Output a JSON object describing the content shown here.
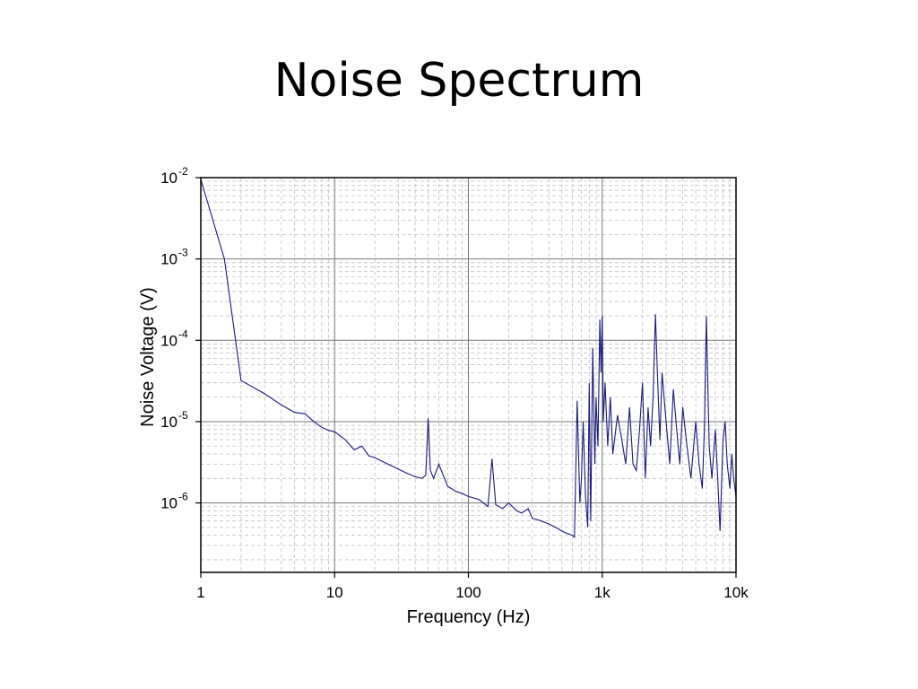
{
  "slide": {
    "title": "Noise Spectrum"
  },
  "chart_data": {
    "type": "line",
    "xlabel": "Frequency (Hz)",
    "ylabel": "Noise Voltage (V)",
    "xscale": "log",
    "yscale": "log",
    "xlim": [
      1,
      10000
    ],
    "ylim": [
      1.4e-07,
      0.01
    ],
    "grid": true,
    "x_ticks": [
      {
        "value": 1,
        "label": "1"
      },
      {
        "value": 10,
        "label": "10"
      },
      {
        "value": 100,
        "label": "100"
      },
      {
        "value": 1000,
        "label": "1k"
      },
      {
        "value": 10000,
        "label": "10k"
      }
    ],
    "y_ticks": [
      {
        "value": 0.01,
        "base": "10",
        "exp": "-2"
      },
      {
        "value": 0.001,
        "base": "10",
        "exp": "-3"
      },
      {
        "value": 0.0001,
        "base": "10",
        "exp": "-4"
      },
      {
        "value": 1e-05,
        "base": "10",
        "exp": "-5"
      },
      {
        "value": 1e-06,
        "base": "10",
        "exp": "-6"
      }
    ],
    "colors": {
      "line": "#1a1a80",
      "grid": "#bfbfbf",
      "major_grid": "#777777"
    },
    "series": [
      {
        "x": [
          1,
          1.5,
          2,
          3,
          4,
          5,
          6,
          7,
          8,
          9,
          10,
          12,
          14,
          16,
          18,
          20,
          25,
          30,
          35,
          40,
          45,
          48,
          50,
          52,
          55,
          60,
          70,
          80,
          90,
          100,
          120,
          140,
          150,
          160,
          180,
          200,
          230,
          250,
          280,
          300,
          350,
          400,
          450,
          500,
          550,
          600,
          620,
          650,
          680,
          700,
          720,
          750,
          780,
          800,
          820,
          850,
          880,
          900,
          930,
          960,
          980,
          1000,
          1020,
          1050,
          1100,
          1150,
          1200,
          1300,
          1400,
          1500,
          1600,
          1700,
          1800,
          1900,
          2000,
          2100,
          2200,
          2300,
          2400,
          2500,
          2600,
          2700,
          2800,
          3000,
          3200,
          3400,
          3600,
          3800,
          4000,
          4300,
          4600,
          5000,
          5300,
          5600,
          5800,
          6000,
          6300,
          6600,
          7000,
          7300,
          7600,
          8000,
          8300,
          8600,
          9000,
          9300,
          9600,
          10000
        ],
        "y": [
          0.0095,
          0.001,
          3.2e-05,
          2.2e-05,
          1.6e-05,
          1.3e-05,
          1.25e-05,
          1e-05,
          8.5e-06,
          7.8e-06,
          7.5e-06,
          6e-06,
          4.5e-06,
          5e-06,
          3.8e-06,
          3.6e-06,
          3e-06,
          2.6e-06,
          2.3e-06,
          2.1e-06,
          2e-06,
          2.2e-06,
          1.1e-05,
          2.5e-06,
          2e-06,
          3e-06,
          1.6e-06,
          1.4e-06,
          1.3e-06,
          1.2e-06,
          1.1e-06,
          9e-07,
          3.5e-06,
          9.5e-07,
          8.5e-07,
          1e-06,
          8e-07,
          7.5e-07,
          8.5e-07,
          6.5e-07,
          6e-07,
          5.5e-07,
          5e-07,
          4.5e-07,
          4.2e-07,
          4e-07,
          3.8e-07,
          1.8e-05,
          1e-06,
          2e-06,
          1e-05,
          1.2e-06,
          5e-07,
          3e-05,
          6e-07,
          8e-05,
          3e-06,
          2e-05,
          5e-06,
          0.00018,
          4e-05,
          0.0002,
          1e-05,
          3e-05,
          5e-06,
          2e-05,
          4e-06,
          1.2e-05,
          6e-06,
          3e-06,
          1.5e-05,
          3e-06,
          2.5e-06,
          8e-06,
          3e-05,
          2e-06,
          1.5e-05,
          5e-06,
          2e-05,
          0.00021,
          3e-05,
          6e-06,
          4e-05,
          1e-05,
          3e-06,
          2.5e-05,
          8e-06,
          3e-06,
          1.5e-05,
          5e-06,
          2e-06,
          1e-05,
          3e-06,
          1.5e-06,
          8e-06,
          0.0002,
          5e-06,
          2e-06,
          8e-06,
          2e-06,
          4.5e-07,
          6e-06,
          1e-05,
          3e-06,
          1.5e-06,
          4e-06,
          2e-06,
          1.2e-06
        ]
      }
    ]
  }
}
